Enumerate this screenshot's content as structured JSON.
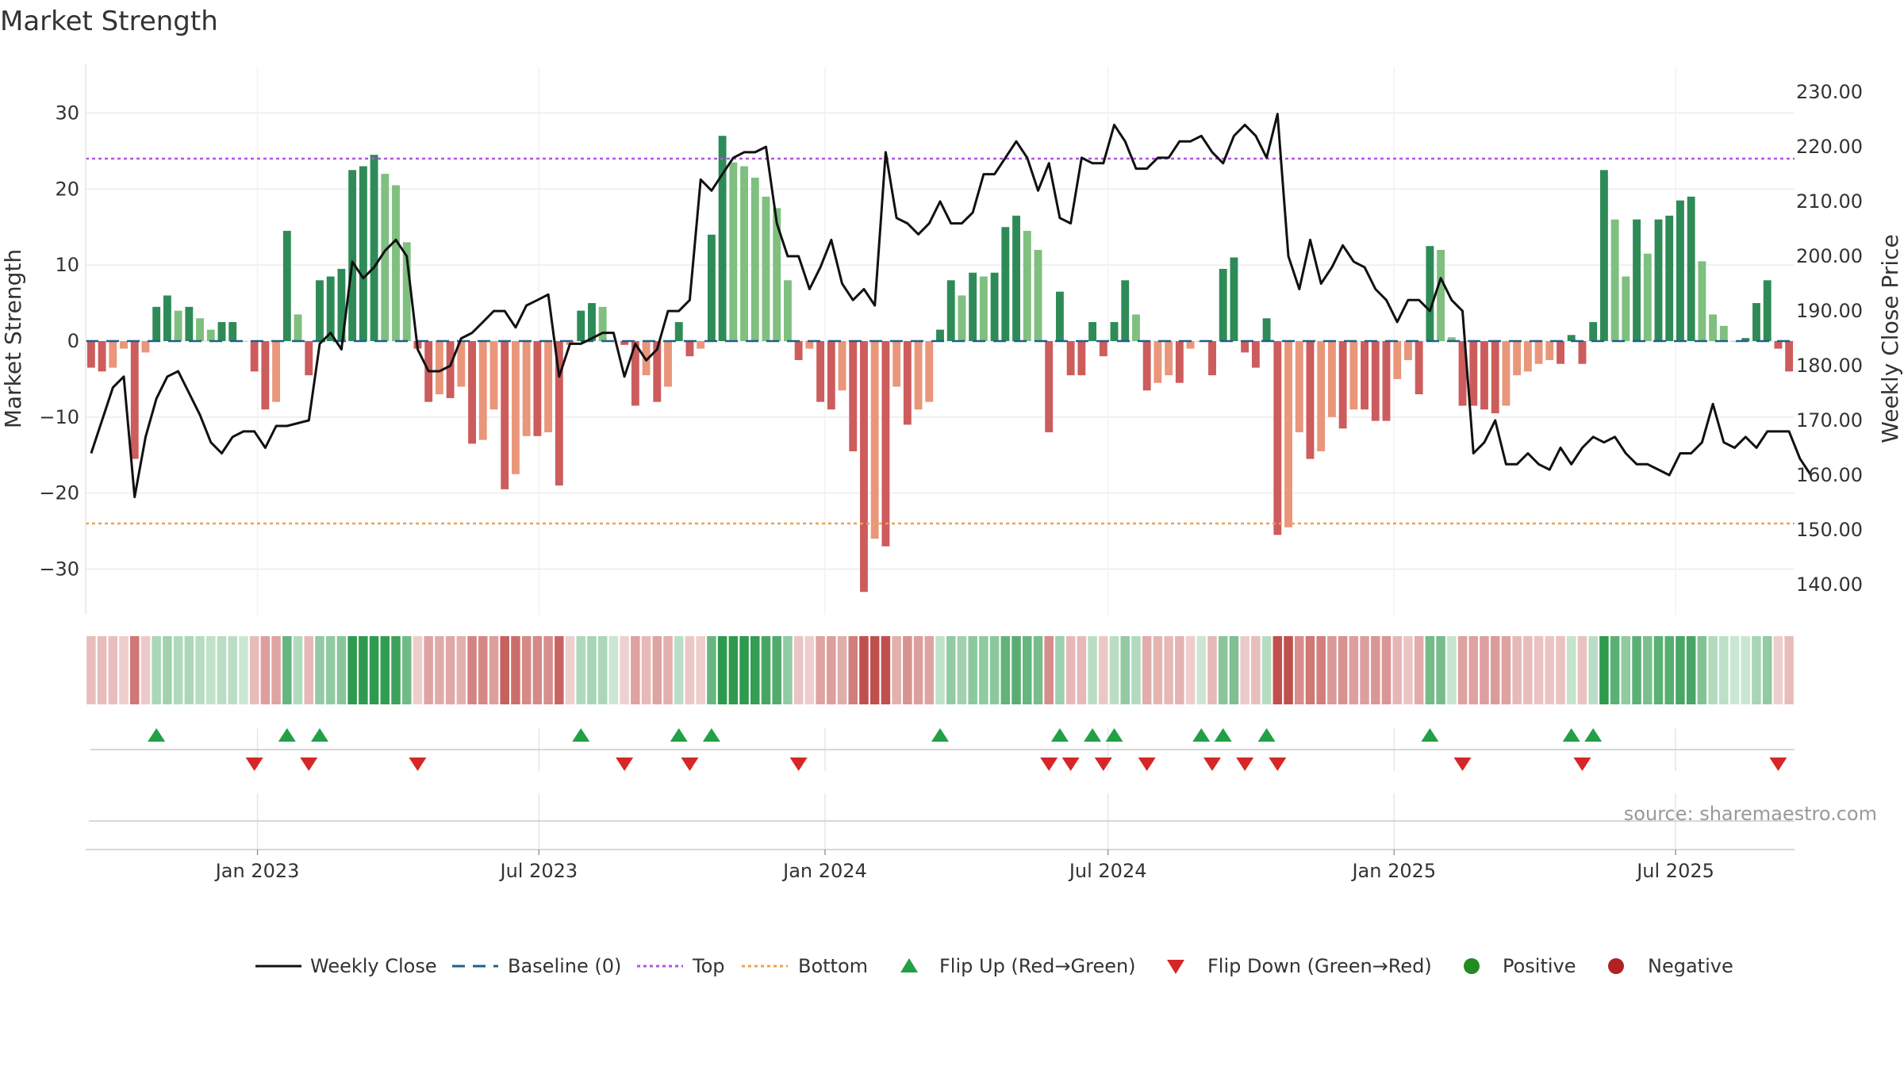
{
  "chart_data": {
    "type": "bar",
    "title": "Market Strength",
    "ylabel": "Market Strength",
    "y2label": "Weekly Close Price",
    "ylim": [
      -36,
      36
    ],
    "y2lim": [
      134.5,
      234.5
    ],
    "yticks": [
      30,
      20,
      10,
      0,
      -10,
      -20,
      -30
    ],
    "ytick_labels": [
      "30",
      "20",
      "10",
      "0",
      "−10",
      "−20",
      "−30"
    ],
    "y2ticks": [
      230,
      220,
      210,
      200,
      190,
      180,
      170,
      160,
      150,
      140
    ],
    "y2tick_labels": [
      "230.00",
      "220.00",
      "210.00",
      "200.00",
      "190.00",
      "180.00",
      "170.00",
      "160.00",
      "150.00",
      "140.00"
    ],
    "x_start": "2022-09-16",
    "x_step_days": 7,
    "x_ticks": [
      {
        "date": "2023-01-01",
        "label": "Jan 2023"
      },
      {
        "date": "2023-07-01",
        "label": "Jul 2023"
      },
      {
        "date": "2024-01-01",
        "label": "Jan 2024"
      },
      {
        "date": "2024-07-01",
        "label": "Jul 2024"
      },
      {
        "date": "2025-01-01",
        "label": "Jan 2025"
      },
      {
        "date": "2025-07-01",
        "label": "Jul 2025"
      }
    ],
    "top_level": 24,
    "bottom_level": -24,
    "baseline": 0,
    "strength": [
      -3.5,
      -4,
      -3.5,
      -1,
      -15.5,
      -1.5,
      4.5,
      6,
      4,
      4.5,
      3,
      1.5,
      2.5,
      2.5,
      0,
      -4,
      -9,
      -8,
      14.5,
      3.5,
      -4.5,
      8,
      8.5,
      9.5,
      22.5,
      23,
      24.5,
      22,
      20.5,
      13,
      -1,
      -8,
      -7,
      -7.5,
      -6,
      -13.5,
      -13,
      -9,
      -19.5,
      -17.5,
      -12.5,
      -12.5,
      -12,
      -19,
      -0.5,
      4,
      5,
      4.5,
      0,
      -0.5,
      -8.5,
      -4.5,
      -8,
      -6,
      2.5,
      -2,
      -1,
      14,
      27,
      23.5,
      23,
      21.5,
      19,
      17.5,
      8,
      -2.5,
      -1,
      -8,
      -9,
      -6.5,
      -14.5,
      -33,
      -26,
      -27,
      -6,
      -11,
      -9,
      -8,
      1.5,
      8,
      6,
      9,
      8.5,
      9,
      15,
      16.5,
      14.5,
      12,
      -12,
      6.5,
      -4.5,
      -4.5,
      2.5,
      -2,
      2.5,
      8,
      3.5,
      -6.5,
      -5.5,
      -4.5,
      -5.5,
      -1,
      0,
      -4.5,
      9.5,
      11,
      -1.5,
      -3.5,
      3,
      -25.5,
      -24.5,
      -12,
      -15.5,
      -14.5,
      -10,
      -11.5,
      -9,
      -9,
      -10.5,
      -10.5,
      -5,
      -2.5,
      -7,
      12.5,
      12,
      0.5,
      -8.5,
      -8.5,
      -9,
      -9.5,
      -8.5,
      -4.5,
      -4,
      -3,
      -2.5,
      -3,
      0.8,
      -3,
      2.5,
      22.5,
      16,
      8.5,
      16,
      11.5,
      16,
      16.5,
      18.5,
      19,
      10.5,
      3.5,
      2,
      0,
      0.4,
      5,
      8,
      -1,
      -4
    ],
    "close": [
      164,
      170,
      176,
      178,
      156,
      167,
      174,
      178,
      179,
      175,
      171,
      166,
      164,
      167,
      168,
      168,
      165,
      169,
      169,
      169.5,
      170,
      184,
      186,
      183,
      199,
      196,
      198,
      201,
      203,
      200,
      183,
      179,
      179,
      180,
      185,
      186,
      188,
      190,
      190,
      187,
      191,
      192,
      193,
      178,
      184,
      184,
      185,
      186,
      186,
      178,
      184,
      181,
      183,
      190,
      190,
      192,
      214,
      212,
      215,
      218,
      219,
      219,
      220,
      206,
      200,
      200,
      194,
      198,
      203,
      195,
      192,
      194,
      191,
      219,
      207,
      206,
      204,
      206,
      210,
      206,
      206,
      208,
      215,
      215,
      218,
      221,
      218,
      212,
      217,
      207,
      206,
      218,
      217,
      217,
      224,
      221,
      216,
      216,
      218,
      218,
      221,
      221,
      222,
      219,
      217,
      222,
      224,
      222,
      218,
      226,
      200,
      194,
      203,
      195,
      198,
      202,
      199,
      198,
      194,
      192,
      188,
      192,
      192,
      190,
      196,
      192,
      190,
      164,
      166,
      170,
      162,
      162,
      164,
      162,
      161,
      165,
      162,
      165,
      167,
      166,
      167,
      164,
      162,
      162,
      161,
      160,
      164,
      164,
      166,
      173,
      166,
      165,
      167,
      165,
      168,
      168,
      168,
      163,
      160
    ],
    "zone_colors": {
      "strong_green": "#2e8b57",
      "light_green": "#7fbf7f",
      "strong_red": "#cd5c5c",
      "light_red": "#e9967a",
      "line": "#111111",
      "baseline": "#1f5f8b",
      "top": "#b452e6",
      "bottom": "#f0a050",
      "flip_up": "#22a045",
      "flip_down": "#d62728",
      "positive": "#228b22",
      "negative": "#b22222"
    },
    "watermark": "source: sharemaestro.com",
    "legend": {
      "weekly_close": "Weekly Close",
      "baseline": "Baseline (0)",
      "top": "Top",
      "bottom": "Bottom",
      "flip_up": "Flip Up (Red→Green)",
      "flip_down": "Flip Down (Green→Red)",
      "positive": "Positive",
      "negative": "Negative"
    }
  }
}
